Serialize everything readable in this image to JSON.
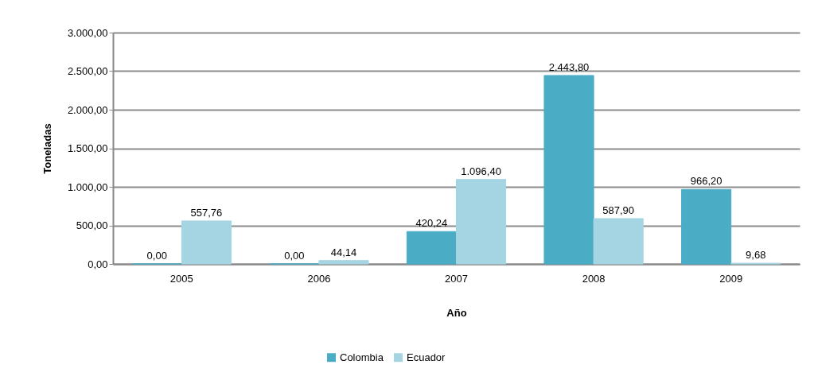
{
  "chart_data": {
    "type": "bar",
    "xlabel": "Año",
    "ylabel": "Toneladas",
    "categories": [
      "2005",
      "2006",
      "2007",
      "2008",
      "2009"
    ],
    "series": [
      {
        "name": "Colombia",
        "color": "#4bacc6",
        "values": [
          0,
          0,
          420.24,
          2443.8,
          966.2
        ],
        "value_labels": [
          "0,00",
          "0,00",
          "420,24",
          "2.443,80",
          "966,20"
        ]
      },
      {
        "name": "Ecuador",
        "color": "#a5d5e2",
        "values": [
          557.76,
          44.14,
          1096.4,
          587.9,
          9.68
        ],
        "value_labels": [
          "557,76",
          "44,14",
          "1.096,40",
          "587,90",
          "9,68"
        ]
      }
    ],
    "ylim": [
      0,
      3000
    ],
    "yticks": [
      {
        "value": 0,
        "label": "0,00"
      },
      {
        "value": 500,
        "label": "500,00"
      },
      {
        "value": 1000,
        "label": "1.000,00"
      },
      {
        "value": 1500,
        "label": "1.500,00"
      },
      {
        "value": 2000,
        "label": "2.000,00"
      },
      {
        "value": 2500,
        "label": "2.500,00"
      },
      {
        "value": 3000,
        "label": "3.000,00"
      }
    ],
    "grid": "y",
    "legend": "bottom"
  }
}
